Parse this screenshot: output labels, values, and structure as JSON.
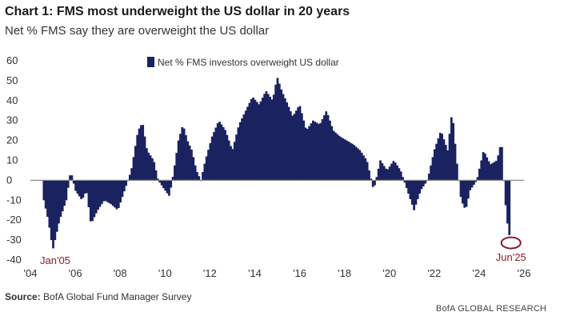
{
  "header": {
    "title": "Chart 1: FMS most underweight the US dollar in 20 years",
    "subtitle": "Net % FMS say they are overweight the US dollar"
  },
  "footer": {
    "source_label": "Source:",
    "source_text": "BofA Global Fund Manager Survey",
    "brand": "BofA GLOBAL RESEARCH"
  },
  "colors": {
    "bar": "#1b2260",
    "zero_line": "#8a8a8a",
    "annotation": "#8b1a2b"
  },
  "chart_data": {
    "type": "bar",
    "legend": "Net % FMS investors overweight US dollar",
    "legend_position": "top-center",
    "ylim": [
      -40,
      60
    ],
    "yticks": [
      60,
      50,
      40,
      30,
      20,
      10,
      0,
      -10,
      -20,
      -30,
      -40
    ],
    "xlim": [
      2004,
      2026
    ],
    "xtick_labels": [
      "'04",
      "'06",
      "'08",
      "'10",
      "'12",
      "'14",
      "'16",
      "'18",
      "'20",
      "'22",
      "'24",
      "'26"
    ],
    "grid": false,
    "annotations": [
      {
        "label": "Jan'05",
        "x": 2005.0,
        "y": -35
      },
      {
        "label": "Jun'25",
        "x": 2025.42,
        "y": -31
      }
    ],
    "anchor_points": [
      [
        2004.6,
        -10
      ],
      [
        2004.8,
        -20
      ],
      [
        2005.0,
        -35
      ],
      [
        2005.3,
        -20
      ],
      [
        2005.6,
        -10
      ],
      [
        2005.8,
        5
      ],
      [
        2006.0,
        -5
      ],
      [
        2006.3,
        -10
      ],
      [
        2006.5,
        -5
      ],
      [
        2006.7,
        -22
      ],
      [
        2007.0,
        -15
      ],
      [
        2007.3,
        -10
      ],
      [
        2007.6,
        -12
      ],
      [
        2007.9,
        -15
      ],
      [
        2008.2,
        -5
      ],
      [
        2008.5,
        5
      ],
      [
        2008.8,
        25
      ],
      [
        2009.0,
        29
      ],
      [
        2009.2,
        15
      ],
      [
        2009.5,
        10
      ],
      [
        2009.7,
        0
      ],
      [
        2010.0,
        -5
      ],
      [
        2010.2,
        -8
      ],
      [
        2010.4,
        5
      ],
      [
        2010.6,
        20
      ],
      [
        2010.8,
        28
      ],
      [
        2011.0,
        20
      ],
      [
        2011.2,
        15
      ],
      [
        2011.4,
        5
      ],
      [
        2011.6,
        0
      ],
      [
        2011.8,
        10
      ],
      [
        2012.1,
        22
      ],
      [
        2012.4,
        30
      ],
      [
        2012.7,
        25
      ],
      [
        2013.0,
        15
      ],
      [
        2013.3,
        28
      ],
      [
        2013.6,
        35
      ],
      [
        2013.9,
        42
      ],
      [
        2014.2,
        38
      ],
      [
        2014.5,
        45
      ],
      [
        2014.8,
        40
      ],
      [
        2015.0,
        52
      ],
      [
        2015.2,
        45
      ],
      [
        2015.4,
        40
      ],
      [
        2015.7,
        32
      ],
      [
        2016.0,
        38
      ],
      [
        2016.3,
        25
      ],
      [
        2016.6,
        30
      ],
      [
        2016.9,
        28
      ],
      [
        2017.2,
        35
      ],
      [
        2017.5,
        25
      ],
      [
        2017.8,
        22
      ],
      [
        2018.1,
        20
      ],
      [
        2018.4,
        18
      ],
      [
        2018.7,
        15
      ],
      [
        2019.0,
        10
      ],
      [
        2019.3,
        -5
      ],
      [
        2019.6,
        10
      ],
      [
        2019.9,
        5
      ],
      [
        2020.2,
        10
      ],
      [
        2020.5,
        5
      ],
      [
        2020.8,
        -5
      ],
      [
        2021.1,
        -15
      ],
      [
        2021.4,
        -5
      ],
      [
        2021.7,
        0
      ],
      [
        2022.0,
        15
      ],
      [
        2022.3,
        25
      ],
      [
        2022.6,
        15
      ],
      [
        2022.8,
        35
      ],
      [
        2023.0,
        10
      ],
      [
        2023.2,
        -10
      ],
      [
        2023.4,
        -15
      ],
      [
        2023.6,
        -5
      ],
      [
        2023.9,
        0
      ],
      [
        2024.2,
        15
      ],
      [
        2024.5,
        8
      ],
      [
        2024.8,
        10
      ],
      [
        2025.0,
        20
      ],
      [
        2025.1,
        0
      ],
      [
        2025.2,
        -15
      ],
      [
        2025.3,
        -25
      ],
      [
        2025.42,
        -31
      ]
    ]
  }
}
